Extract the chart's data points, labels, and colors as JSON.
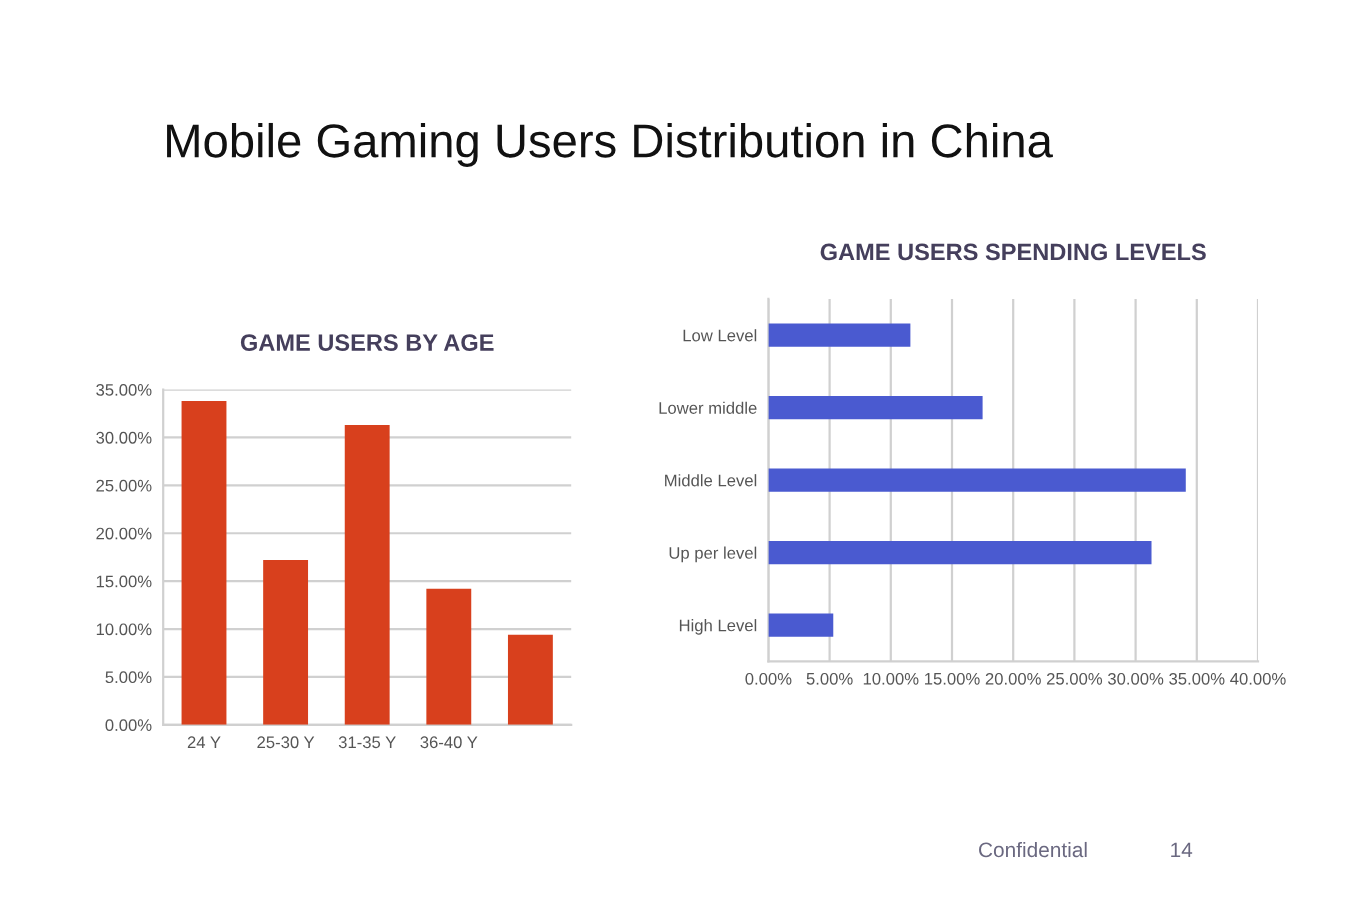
{
  "chart_data": [
    {
      "type": "bar",
      "title": "GAME USERS BY AGE",
      "annotations": [
        "Mobile Gaming Users Distribution in China"
      ],
      "categories": [
        "24 Y",
        "25-30 Y",
        "31-35 Y",
        "36-40 Y",
        null
      ],
      "values": [
        33.8,
        17.2,
        31.3,
        14.2,
        9.4
      ],
      "color": "#d8401d",
      "ylim": [
        0,
        35
      ],
      "yticks": [
        {
          "value": 0,
          "label": "0.00%"
        },
        {
          "value": 5,
          "label": "5.00%"
        },
        {
          "value": 10,
          "label": "10.00%"
        },
        {
          "value": 15,
          "label": "15.00%"
        },
        {
          "value": 20,
          "label": "20.00%"
        },
        {
          "value": 25,
          "label": "25.00%"
        },
        {
          "value": 30,
          "label": "30.00%"
        },
        {
          "value": 35,
          "label": "35.00%"
        }
      ],
      "grid": "y"
    },
    {
      "type": "bar",
      "orientation": "horizontal",
      "title": "GAME USERS SPENDING LEVELS",
      "annotations": [
        "Confidential",
        "14"
      ],
      "categories": [
        "Low Level",
        "Lower middle",
        "Middle Level",
        "Up per level",
        "High Level"
      ],
      "values": [
        11.6,
        17.5,
        34.1,
        31.3,
        5.3
      ],
      "color": "#4a5ad0",
      "xlim": [
        0,
        40
      ],
      "xticks": [
        {
          "value": 0,
          "label": "0.00%"
        },
        {
          "value": 5,
          "label": "5.00%"
        },
        {
          "value": 10,
          "label": "10.00%"
        },
        {
          "value": 15,
          "label": "15.00%"
        },
        {
          "value": 20,
          "label": "20.00%"
        },
        {
          "value": 25,
          "label": "25.00%"
        },
        {
          "value": 30,
          "label": "30.00%"
        },
        {
          "value": 35,
          "label": "35.00%"
        },
        {
          "value": 40,
          "label": "40.00%"
        }
      ],
      "grid": "x"
    }
  ]
}
